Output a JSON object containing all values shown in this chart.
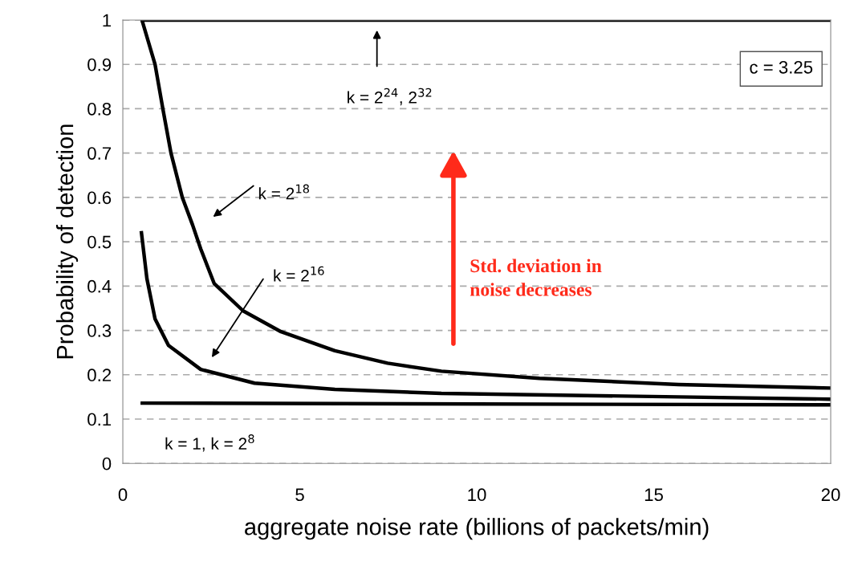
{
  "chart_data": {
    "type": "line",
    "xlabel": "aggregate noise rate (billions of packets/min)",
    "ylabel": "Probability of detection",
    "xlim": [
      0,
      20
    ],
    "xticks": [
      0,
      5,
      10,
      15,
      20
    ],
    "ylim": [
      0,
      1
    ],
    "yticks": [
      0,
      0.1,
      0.2,
      0.3,
      0.4,
      0.5,
      0.6,
      0.7,
      0.8,
      0.9,
      1
    ],
    "grid": "y",
    "marker": "none",
    "line_style": "solid",
    "series": [
      {
        "color": "#000000",
        "x": [
          0.5,
          20
        ],
        "values": [
          1.0,
          1.0
        ]
      },
      {
        "color": "#000000",
        "x": [
          0.54,
          0.91,
          1.13,
          1.36,
          1.68,
          1.97,
          2.2,
          2.58,
          3.4,
          4.47,
          5.99,
          7.48,
          9.0,
          11.77,
          15.7,
          20
        ],
        "values": [
          1.0,
          0.9,
          0.8,
          0.7,
          0.6,
          0.538,
          0.484,
          0.406,
          0.344,
          0.297,
          0.254,
          0.226,
          0.208,
          0.192,
          0.178,
          0.17
        ]
      },
      {
        "color": "#000000",
        "x": [
          0.52,
          0.68,
          0.91,
          1.29,
          2.2,
          3.72,
          5.99,
          9.0,
          15.7,
          20
        ],
        "values": [
          0.524,
          0.417,
          0.326,
          0.266,
          0.212,
          0.181,
          0.167,
          0.158,
          0.15,
          0.145
        ]
      },
      {
        "color": "#000000",
        "x": [
          0.5,
          20
        ],
        "values": [
          0.136,
          0.132
        ]
      }
    ],
    "annotations": [
      "k = 2$^{24}$, 2$^{32}$",
      "k = 2$^{18}$",
      "k = 2$^{16}$",
      "k = 1, k = 2$^{8}$",
      "c = 3.25",
      "Std. deviation in\nnoise decreases"
    ]
  }
}
